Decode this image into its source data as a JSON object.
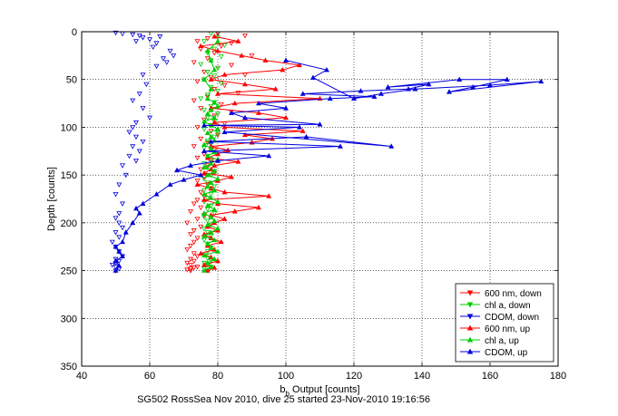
{
  "chart_data": {
    "type": "scatter",
    "xlabel_main": "b",
    "xlabel_sub": "b",
    "xlabel_rest": " Output [counts]",
    "ylabel": "Depth [counts]",
    "caption": "SG502 RossSea Nov 2010, dive 25 started 23-Nov-2010 19:16:56",
    "xlim": [
      40,
      180
    ],
    "ylim": [
      0,
      350
    ],
    "y_reversed": true,
    "grid": true,
    "legend_position": "bottom-right",
    "xticks": [
      40,
      60,
      80,
      100,
      120,
      140,
      160,
      180
    ],
    "yticks": [
      0,
      50,
      100,
      150,
      200,
      250,
      300,
      350
    ],
    "series": [
      {
        "name": "600 nm, down",
        "color": "#ff0000",
        "marker": "triangle-down",
        "line": false,
        "x": [
          80,
          88,
          77,
          74,
          84,
          81,
          75,
          79,
          90,
          77,
          73,
          84,
          80,
          76,
          88,
          78,
          74,
          82,
          79,
          86,
          77,
          73,
          81,
          75,
          84,
          79,
          76,
          82,
          74,
          78,
          80,
          75,
          77,
          73,
          79,
          76,
          74,
          78,
          77,
          75,
          79,
          76,
          74,
          77,
          78,
          75,
          76,
          74,
          73,
          75,
          72,
          76,
          74,
          71,
          75,
          73,
          72,
          74,
          73,
          72,
          71,
          73,
          74,
          72,
          73,
          71,
          72,
          74,
          73,
          72,
          71,
          72
        ],
        "y": [
          2,
          4,
          7,
          10,
          12,
          15,
          18,
          22,
          25,
          28,
          32,
          35,
          38,
          42,
          45,
          48,
          52,
          56,
          60,
          64,
          68,
          72,
          76,
          80,
          84,
          88,
          92,
          96,
          100,
          104,
          108,
          112,
          116,
          120,
          124,
          128,
          132,
          136,
          140,
          144,
          148,
          152,
          156,
          160,
          164,
          168,
          172,
          176,
          180,
          184,
          188,
          192,
          196,
          200,
          204,
          208,
          212,
          216,
          220,
          224,
          228,
          232,
          235,
          238,
          240,
          242,
          244,
          246,
          247,
          248,
          249,
          250
        ]
      },
      {
        "name": "chl a, down",
        "color": "#00cc00",
        "marker": "triangle-down",
        "line": false,
        "x": [
          78,
          80,
          76,
          82,
          79,
          77,
          81,
          78,
          75,
          80,
          77,
          79,
          76,
          81,
          78,
          80,
          77,
          75,
          79,
          78,
          76,
          80,
          77,
          79,
          78,
          76,
          80,
          79,
          77,
          78,
          76,
          79,
          77,
          78,
          76,
          77,
          79,
          78,
          76,
          77,
          79,
          76,
          78,
          77,
          76,
          78,
          77,
          79,
          76,
          77,
          78,
          76,
          77,
          78,
          76,
          77,
          78,
          77,
          76,
          77,
          78,
          76,
          77,
          78,
          76,
          77
        ],
        "y": [
          2,
          6,
          10,
          14,
          18,
          22,
          26,
          30,
          34,
          38,
          42,
          46,
          50,
          54,
          58,
          62,
          66,
          70,
          74,
          78,
          82,
          86,
          90,
          94,
          98,
          102,
          106,
          110,
          114,
          118,
          122,
          126,
          130,
          134,
          138,
          142,
          146,
          150,
          154,
          158,
          162,
          166,
          170,
          174,
          178,
          182,
          186,
          190,
          194,
          198,
          202,
          206,
          210,
          214,
          218,
          222,
          226,
          230,
          234,
          237,
          240,
          242,
          244,
          246,
          248,
          250
        ]
      },
      {
        "name": "CDOM, down",
        "color": "#0000dd",
        "marker": "triangle-down",
        "line": false,
        "x": [
          50,
          52,
          55,
          57,
          58,
          60,
          63,
          56,
          62,
          61,
          66,
          67,
          64,
          65,
          62,
          58,
          59,
          57,
          55,
          58,
          60,
          56,
          55,
          54,
          56,
          58,
          55,
          57,
          54,
          56,
          52,
          53,
          51,
          50,
          52,
          51,
          50,
          51,
          52,
          50,
          51,
          49,
          50,
          51,
          52,
          50,
          51,
          50,
          49,
          50,
          51,
          50
        ],
        "y": [
          1,
          2,
          3,
          4,
          6,
          8,
          5,
          10,
          12,
          16,
          20,
          25,
          28,
          32,
          36,
          45,
          55,
          65,
          72,
          80,
          90,
          95,
          100,
          105,
          110,
          115,
          120,
          125,
          130,
          135,
          140,
          150,
          160,
          170,
          180,
          190,
          195,
          200,
          205,
          210,
          215,
          220,
          225,
          230,
          235,
          238,
          240,
          242,
          244,
          246,
          248,
          250
        ]
      },
      {
        "name": "600 nm, up",
        "color": "#ff0000",
        "marker": "triangle-up",
        "line": true,
        "x": [
          77,
          79,
          76,
          80,
          78,
          75,
          79,
          77,
          81,
          78,
          76,
          80,
          77,
          79,
          82,
          78,
          85,
          92,
          80,
          76,
          95,
          82,
          78,
          74,
          80,
          84,
          76,
          78,
          79,
          86,
          77,
          80,
          83,
          78,
          90,
          96,
          88,
          105,
          82,
          79,
          100,
          92,
          78,
          85,
          110,
          80,
          97,
          88,
          78,
          82,
          99,
          104,
          94,
          87,
          80,
          75,
          86,
          79
        ],
        "y": [
          250,
          247,
          244,
          240,
          236,
          232,
          228,
          224,
          220,
          216,
          212,
          208,
          204,
          200,
          196,
          192,
          188,
          184,
          180,
          176,
          172,
          168,
          164,
          160,
          156,
          152,
          148,
          144,
          140,
          136,
          132,
          128,
          124,
          120,
          116,
          112,
          108,
          104,
          100,
          95,
          90,
          85,
          80,
          75,
          70,
          65,
          60,
          55,
          50,
          45,
          40,
          35,
          30,
          25,
          20,
          15,
          10,
          5
        ]
      },
      {
        "name": "chl a, up",
        "color": "#00cc00",
        "marker": "triangle-up",
        "line": true,
        "x": [
          76,
          78,
          77,
          79,
          76,
          80,
          78,
          77,
          79,
          76,
          78,
          80,
          77,
          79,
          78,
          76,
          79,
          77,
          80,
          78,
          76,
          79,
          77,
          78,
          80,
          77,
          79,
          76,
          78,
          80,
          77,
          79,
          78,
          76,
          79,
          78,
          77,
          80,
          78,
          76,
          79,
          77,
          78,
          80,
          79,
          77,
          78,
          76,
          79,
          78,
          77,
          80
        ],
        "y": [
          250,
          246,
          242,
          238,
          234,
          230,
          226,
          222,
          218,
          214,
          210,
          206,
          202,
          198,
          194,
          190,
          186,
          182,
          178,
          174,
          170,
          166,
          162,
          158,
          154,
          150,
          146,
          142,
          138,
          134,
          130,
          126,
          122,
          118,
          114,
          110,
          106,
          102,
          98,
          94,
          90,
          86,
          82,
          78,
          74,
          70,
          60,
          50,
          40,
          30,
          20,
          10
        ]
      },
      {
        "name": "CDOM, up",
        "color": "#0000dd",
        "marker": "triangle-up",
        "line": true,
        "x": [
          50,
          51,
          50,
          52,
          51,
          50,
          52,
          53,
          55,
          57,
          56,
          58,
          62,
          66,
          70,
          75,
          68,
          72,
          80,
          95,
          76,
          116,
          78,
          106,
          131,
          82,
          104,
          76,
          110,
          88,
          84,
          100,
          92,
          113,
          126,
          105,
          122,
          136,
          142,
          130,
          151,
          165,
          155,
          148,
          175,
          160,
          138,
          128,
          120,
          108,
          112,
          100
        ],
        "y": [
          250,
          245,
          240,
          235,
          230,
          225,
          220,
          210,
          200,
          190,
          185,
          180,
          170,
          160,
          155,
          150,
          145,
          140,
          135,
          130,
          125,
          120,
          115,
          110,
          120,
          105,
          100,
          98,
          97,
          90,
          85,
          80,
          75,
          70,
          68,
          65,
          62,
          60,
          55,
          58,
          50,
          50,
          58,
          63,
          52,
          56,
          60,
          65,
          70,
          48,
          40,
          30
        ]
      }
    ]
  }
}
